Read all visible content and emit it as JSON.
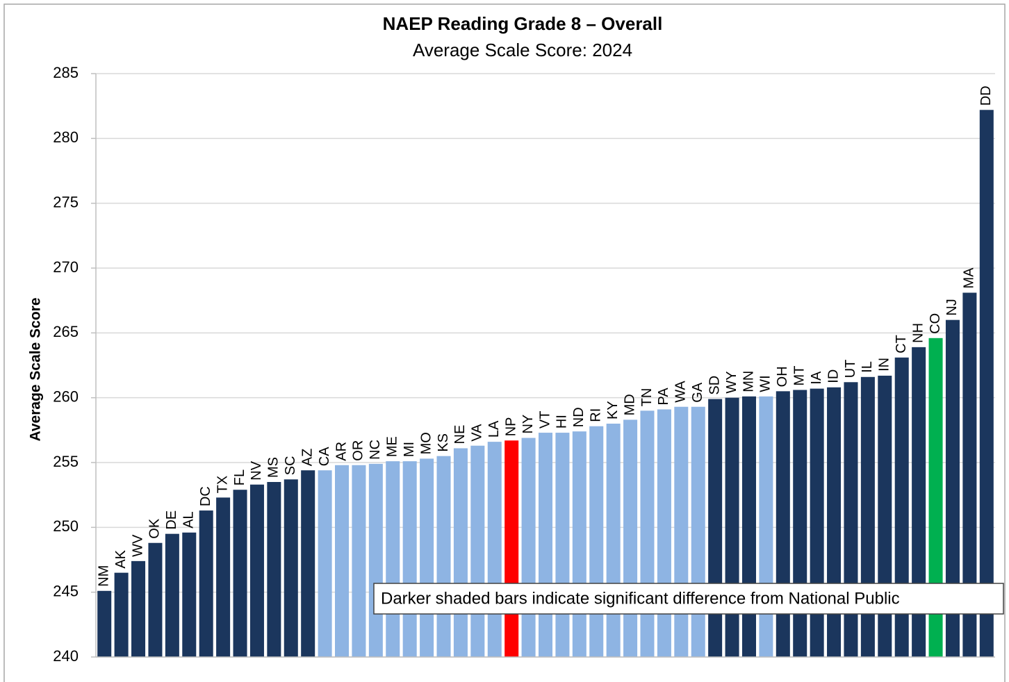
{
  "chart_data": {
    "type": "bar",
    "title": "NAEP Reading Grade 8 – Overall",
    "subtitle": "Average Scale Score: 2024",
    "y_label": "Average Scale Score",
    "annotation": "Darker shaded bars indicate significant difference from National Public",
    "categories": [
      "NM",
      "AK",
      "WV",
      "OK",
      "DE",
      "AL",
      "DC",
      "TX",
      "FL",
      "NV",
      "MS",
      "SC",
      "AZ",
      "CA",
      "AR",
      "OR",
      "NC",
      "ME",
      "MI",
      "MO",
      "KS",
      "NE",
      "VA",
      "LA",
      "NP",
      "NY",
      "VT",
      "HI",
      "ND",
      "RI",
      "KY",
      "MD",
      "TN",
      "PA",
      "WA",
      "GA",
      "SD",
      "WY",
      "MN",
      "WI",
      "OH",
      "MT",
      "IA",
      "ID",
      "UT",
      "IL",
      "IN",
      "CT",
      "NH",
      "CO",
      "NJ",
      "MA",
      "DD"
    ],
    "values": [
      245.1,
      246.5,
      247.4,
      248.8,
      249.5,
      249.6,
      251.3,
      252.3,
      252.9,
      253.3,
      253.5,
      253.7,
      254.4,
      254.4,
      254.8,
      254.8,
      254.9,
      255.1,
      255.1,
      255.3,
      255.5,
      256.1,
      256.3,
      256.6,
      256.7,
      256.9,
      257.3,
      257.3,
      257.4,
      257.8,
      258.0,
      258.3,
      259.0,
      259.1,
      259.3,
      259.3,
      259.9,
      260.0,
      260.1,
      260.1,
      260.5,
      260.6,
      260.7,
      260.8,
      261.2,
      261.6,
      261.7,
      263.1,
      263.9,
      264.6,
      266.0,
      268.1,
      282.2
    ],
    "colors": [
      "#1b365d",
      "#1b365d",
      "#1b365d",
      "#1b365d",
      "#1b365d",
      "#1b365d",
      "#1b365d",
      "#1b365d",
      "#1b365d",
      "#1b365d",
      "#1b365d",
      "#1b365d",
      "#1b365d",
      "#8eb4e3",
      "#8eb4e3",
      "#8eb4e3",
      "#8eb4e3",
      "#8eb4e3",
      "#8eb4e3",
      "#8eb4e3",
      "#8eb4e3",
      "#8eb4e3",
      "#8eb4e3",
      "#8eb4e3",
      "#ff0000",
      "#8eb4e3",
      "#8eb4e3",
      "#8eb4e3",
      "#8eb4e3",
      "#8eb4e3",
      "#8eb4e3",
      "#8eb4e3",
      "#8eb4e3",
      "#8eb4e3",
      "#8eb4e3",
      "#8eb4e3",
      "#1b365d",
      "#1b365d",
      "#1b365d",
      "#8eb4e3",
      "#1b365d",
      "#1b365d",
      "#1b365d",
      "#1b365d",
      "#1b365d",
      "#1b365d",
      "#1b365d",
      "#1b365d",
      "#1b365d",
      "#00b050",
      "#1b365d",
      "#1b365d",
      "#1b365d"
    ],
    "ylim": [
      240,
      285
    ],
    "yticks": [
      240,
      245,
      250,
      255,
      260,
      265,
      270,
      275,
      280,
      285
    ],
    "grid": true
  }
}
